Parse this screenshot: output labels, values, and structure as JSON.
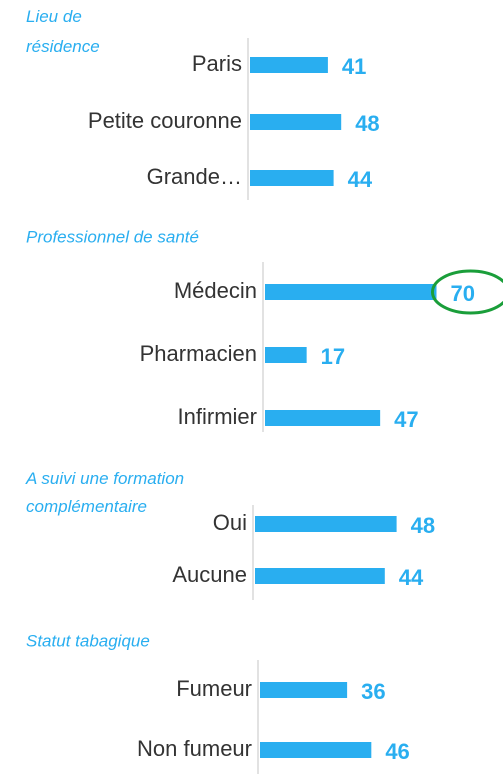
{
  "chart_data": [
    {
      "type": "barh",
      "title": "Lieu de résidence",
      "categories": [
        "Paris",
        "Petite couronne",
        "Grande…"
      ],
      "values": [
        41,
        48,
        44
      ],
      "color": "#29aef0"
    },
    {
      "type": "barh",
      "title": "Professionnel de santé",
      "categories": [
        "Médecin",
        "Pharmacien",
        "Infirmier"
      ],
      "values": [
        70,
        17,
        47
      ],
      "color": "#29aef0",
      "highlight": 0,
      "highlight_color": "#1a9e3a"
    },
    {
      "type": "barh",
      "title": "A suivi une formation complémentaire",
      "categories": [
        "Oui",
        "Aucune"
      ],
      "values": [
        48,
        44
      ],
      "color": "#29aef0"
    },
    {
      "type": "barh",
      "title": "Statut tabagique",
      "categories": [
        "Fumeur",
        "Non fumeur"
      ],
      "values": [
        36,
        46
      ],
      "color": "#29aef0"
    }
  ]
}
